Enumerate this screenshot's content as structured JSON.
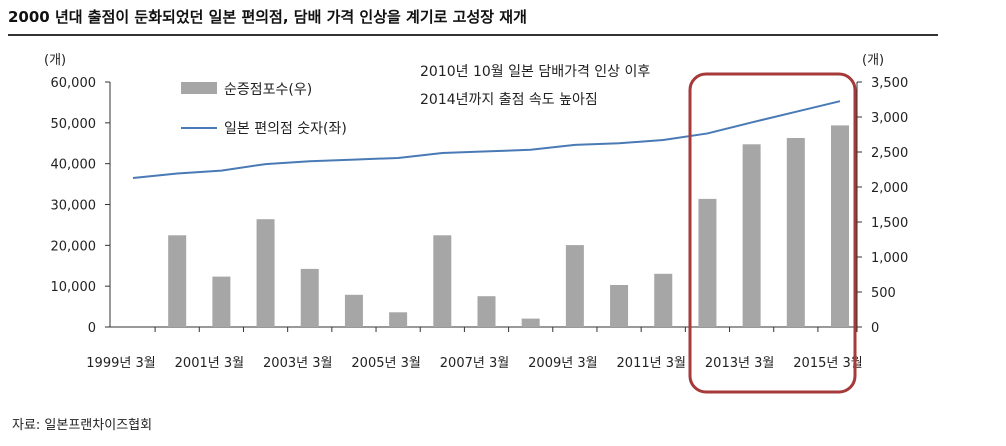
{
  "header": {
    "title": "2000 년대 출점이 둔화되었던 일본 편의점, 담배 가격 인상을 계기로 고성장 재개"
  },
  "footer": {
    "source": "자료: 일본프랜차이즈협회"
  },
  "chart_data": {
    "type": "bar+line",
    "title": "",
    "left_axis": {
      "unit": "(개)",
      "min": 0,
      "max": 60000,
      "step": 10000,
      "ticks": [
        "0",
        "10,000",
        "20,000",
        "30,000",
        "40,000",
        "50,000",
        "60,000"
      ]
    },
    "right_axis": {
      "unit": "(개)",
      "min": 0,
      "max": 3500,
      "step": 500,
      "ticks": [
        "0",
        "500",
        "1,000",
        "1,500",
        "2,000",
        "2,500",
        "3,000",
        "3,500"
      ]
    },
    "x_tick_labels": [
      "1999년 3월",
      "2001년 3월",
      "2003년 3월",
      "2005년 3월",
      "2007년 3월",
      "2009년 3월",
      "2011년 3월",
      "2013년 3월",
      "2015년 3월"
    ],
    "categories": [
      "1999",
      "2000",
      "2001",
      "2002",
      "2003",
      "2004",
      "2005",
      "2006",
      "2007",
      "2008",
      "2009",
      "2010",
      "2011",
      "2012",
      "2013",
      "2014",
      "2015"
    ],
    "series": [
      {
        "name": "순증점포수(우)",
        "kind": "bar",
        "axis": "right",
        "color": "#a6a6a6",
        "values": [
          null,
          1310,
          720,
          1540,
          830,
          460,
          210,
          1310,
          440,
          120,
          1170,
          600,
          760,
          1830,
          2610,
          2700,
          2880
        ]
      },
      {
        "name": "일본 편의점 숫자(좌)",
        "kind": "line",
        "axis": "left",
        "color": "#4a7ab5",
        "values": [
          36500,
          37600,
          38300,
          39900,
          40600,
          41000,
          41400,
          42600,
          43000,
          43400,
          44600,
          45000,
          45800,
          47400,
          50100,
          52700,
          55300
        ]
      }
    ],
    "annotation": [
      "2010년 10월 일본 담배가격 인상 이후",
      "2014년까지 출점 속도 높아짐"
    ],
    "highlight": {
      "from_category": "2012",
      "to_category": "2015",
      "color": "#a63a3a"
    },
    "legend": "top-left"
  }
}
